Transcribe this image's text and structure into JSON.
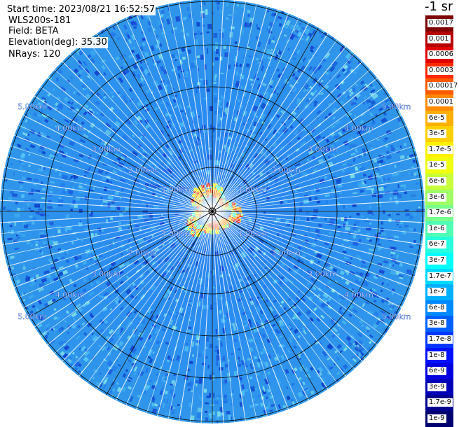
{
  "header": {
    "start_time": "Start time: 2023/08/21 16:52:57",
    "instrument": "WLS200s-181",
    "field": "Field: BETA",
    "elevation": "Elevation(deg): 35.30",
    "nrays": "NRays: 120"
  },
  "colorbar": {
    "units": "-1 sr",
    "labels": [
      "0.0017",
      "0.001",
      "0.0006",
      "0.0003",
      "0.00017",
      "0.0001",
      "6e-5",
      "3e-5",
      "1.7e-5",
      "1e-5",
      "6e-6",
      "3e-6",
      "1.7e-6",
      "1e-6",
      "6e-7",
      "3e-7",
      "1.7e-7",
      "1e-7",
      "6e-8",
      "3e-8",
      "1.7e-8",
      "1e-8",
      "6e-9",
      "3e-9",
      "1.7e-9",
      "1e-9"
    ],
    "colors": [
      "#7f0000",
      "#b40000",
      "#e10000",
      "#ff2a00",
      "#ff5a00",
      "#ff8a00",
      "#ffb000",
      "#ffd000",
      "#fff000",
      "#f0ff10",
      "#c8ff3a",
      "#a0ff64",
      "#78ff8c",
      "#50ffb4",
      "#28ffdc",
      "#00ffff",
      "#00d8ff",
      "#00b0ff",
      "#0088ff",
      "#0060ff",
      "#0038ff",
      "#0010ff",
      "#0000e0",
      "#0000b8",
      "#000090",
      "#000070"
    ]
  },
  "ppi": {
    "ring_labels": [
      "1.00km",
      "2.00km",
      "3.00km",
      "4.00km",
      "5.00km"
    ]
  }
}
